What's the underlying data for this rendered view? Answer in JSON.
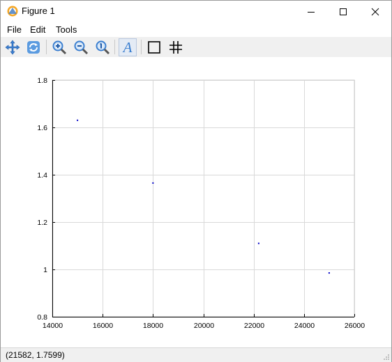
{
  "window": {
    "title": "Figure 1"
  },
  "menu": {
    "file": "File",
    "edit": "Edit",
    "tools": "Tools"
  },
  "toolbar": {
    "tools": [
      "pan-icon",
      "rotate-icon",
      "zoom-in-icon",
      "zoom-out-icon",
      "zoom-reset-icon",
      "text-icon",
      "axes-box-icon",
      "grid-icon"
    ],
    "text_tool_glyph": "A"
  },
  "status": {
    "coordinates": "(21582, 1.7599)"
  },
  "colors": {
    "marker": "#0000c8",
    "grid": "#d9d9d9",
    "axis": "#000000"
  },
  "chart_data": {
    "type": "scatter",
    "x": [
      15000,
      18000,
      22200,
      25000
    ],
    "y": [
      1.63,
      1.365,
      1.11,
      0.985
    ],
    "xlim": [
      14000,
      26000
    ],
    "ylim": [
      0.8,
      1.8
    ],
    "xticks": [
      14000,
      16000,
      18000,
      20000,
      22000,
      24000,
      26000
    ],
    "yticks": [
      0.8,
      1,
      1.2,
      1.4,
      1.6,
      1.8
    ],
    "xtick_labels": [
      "14000",
      "16000",
      "18000",
      "20000",
      "22000",
      "24000",
      "26000"
    ],
    "ytick_labels": [
      "0.8",
      "1",
      "1.2",
      "1.4",
      "1.6",
      "1.8"
    ],
    "grid": true
  }
}
